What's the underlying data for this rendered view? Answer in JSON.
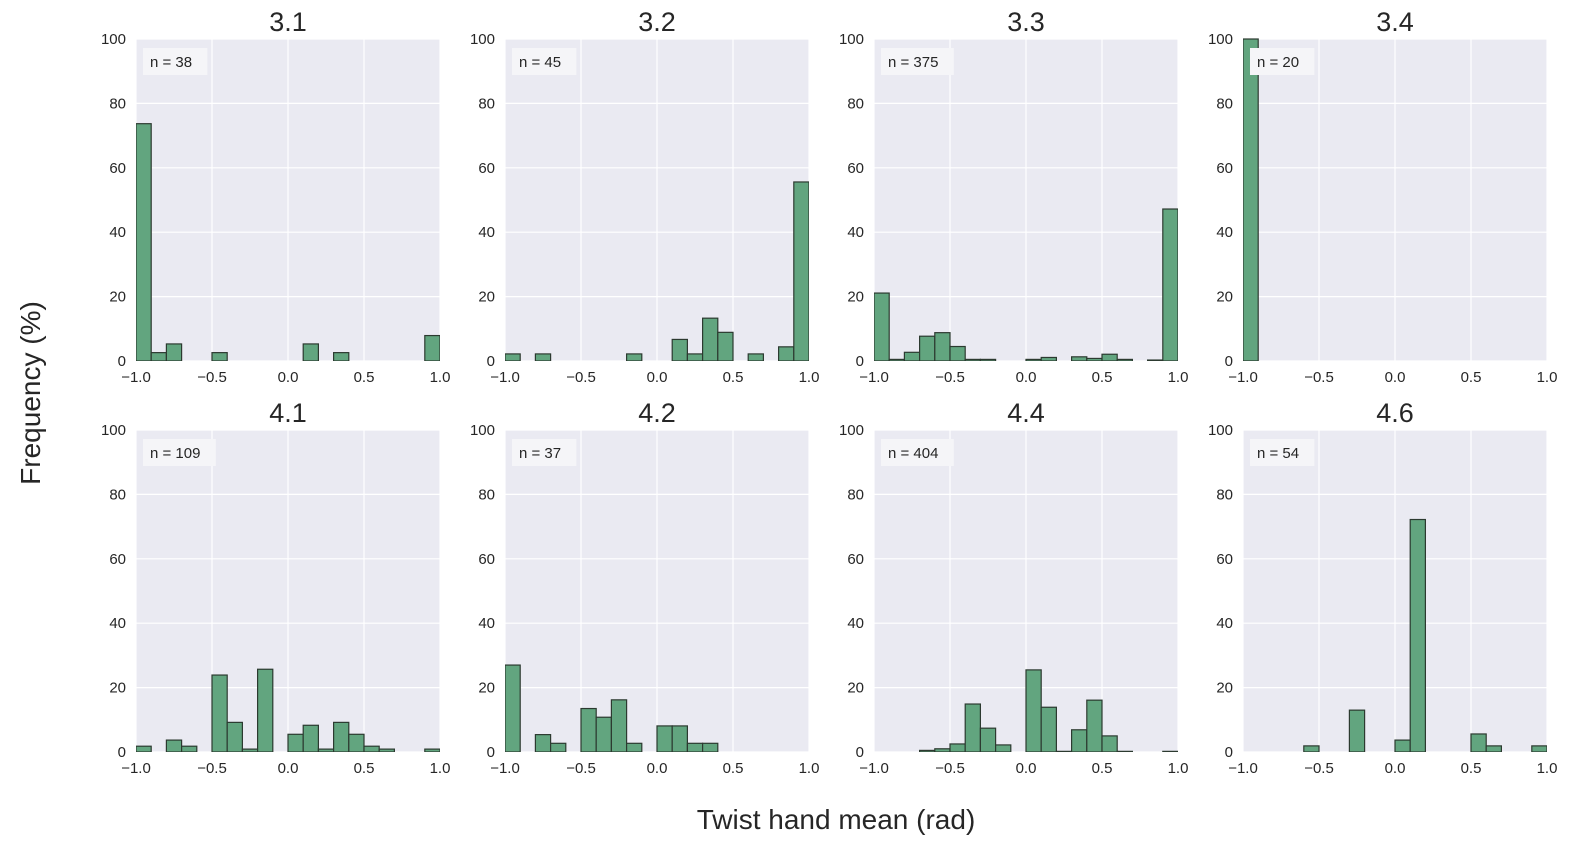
{
  "figure": {
    "ylabel": "Frequency (%)",
    "xlabel": "Twist hand mean (rad)",
    "bar_color": "#62a57f",
    "bar_edge_color": "#2c3a30",
    "panel_bg": "#eaeaf2",
    "grid_color": "#ffffff",
    "x_ticks": [
      "−1.0",
      "−0.5",
      "0.0",
      "0.5",
      "1.0"
    ],
    "y_ticks": [
      "0",
      "20",
      "40",
      "60",
      "80",
      "100"
    ]
  },
  "chart_data": [
    {
      "type": "bar",
      "title": "3.1",
      "annotation": "n = 38",
      "xlim": [
        -1,
        1
      ],
      "ylim": [
        0,
        100
      ],
      "bin_width": 0.1,
      "bins": [
        {
          "x": -1.0,
          "y": 73.7
        },
        {
          "x": -0.9,
          "y": 2.6
        },
        {
          "x": -0.8,
          "y": 5.3
        },
        {
          "x": -0.5,
          "y": 2.6
        },
        {
          "x": 0.1,
          "y": 5.3
        },
        {
          "x": 0.3,
          "y": 2.6
        },
        {
          "x": 0.9,
          "y": 7.9
        }
      ]
    },
    {
      "type": "bar",
      "title": "3.2",
      "annotation": "n = 45",
      "xlim": [
        -1,
        1
      ],
      "ylim": [
        0,
        100
      ],
      "bin_width": 0.1,
      "bins": [
        {
          "x": -1.0,
          "y": 2.2
        },
        {
          "x": -0.8,
          "y": 2.2
        },
        {
          "x": -0.2,
          "y": 2.2
        },
        {
          "x": 0.1,
          "y": 6.7
        },
        {
          "x": 0.2,
          "y": 2.2
        },
        {
          "x": 0.3,
          "y": 13.3
        },
        {
          "x": 0.4,
          "y": 8.9
        },
        {
          "x": 0.6,
          "y": 2.2
        },
        {
          "x": 0.8,
          "y": 4.4
        },
        {
          "x": 0.9,
          "y": 55.6
        }
      ]
    },
    {
      "type": "bar",
      "title": "3.3",
      "annotation": "n = 375",
      "xlim": [
        -1,
        1
      ],
      "ylim": [
        0,
        100
      ],
      "bin_width": 0.1,
      "bins": [
        {
          "x": -1.0,
          "y": 21.1
        },
        {
          "x": -0.9,
          "y": 0.5
        },
        {
          "x": -0.8,
          "y": 2.7
        },
        {
          "x": -0.7,
          "y": 7.7
        },
        {
          "x": -0.6,
          "y": 8.8
        },
        {
          "x": -0.5,
          "y": 4.5
        },
        {
          "x": -0.4,
          "y": 0.5
        },
        {
          "x": -0.3,
          "y": 0.5
        },
        {
          "x": 0.0,
          "y": 0.5
        },
        {
          "x": 0.1,
          "y": 1.1
        },
        {
          "x": 0.3,
          "y": 1.3
        },
        {
          "x": 0.4,
          "y": 0.8
        },
        {
          "x": 0.5,
          "y": 2.1
        },
        {
          "x": 0.6,
          "y": 0.5
        },
        {
          "x": 0.8,
          "y": 0.3
        },
        {
          "x": 0.9,
          "y": 47.2
        }
      ]
    },
    {
      "type": "bar",
      "title": "3.4",
      "annotation": "n = 20",
      "xlim": [
        -1,
        1
      ],
      "ylim": [
        0,
        100
      ],
      "bin_width": 0.1,
      "bins": [
        {
          "x": -1.0,
          "y": 100.0
        }
      ]
    },
    {
      "type": "bar",
      "title": "4.1",
      "annotation": "n = 109",
      "xlim": [
        -1,
        1
      ],
      "ylim": [
        0,
        100
      ],
      "bin_width": 0.1,
      "bins": [
        {
          "x": -1.0,
          "y": 1.8
        },
        {
          "x": -0.8,
          "y": 3.7
        },
        {
          "x": -0.7,
          "y": 1.8
        },
        {
          "x": -0.5,
          "y": 23.9
        },
        {
          "x": -0.4,
          "y": 9.2
        },
        {
          "x": -0.3,
          "y": 0.9
        },
        {
          "x": -0.2,
          "y": 25.7
        },
        {
          "x": 0.0,
          "y": 5.5
        },
        {
          "x": 0.1,
          "y": 8.3
        },
        {
          "x": 0.2,
          "y": 0.9
        },
        {
          "x": 0.3,
          "y": 9.2
        },
        {
          "x": 0.4,
          "y": 5.5
        },
        {
          "x": 0.5,
          "y": 1.8
        },
        {
          "x": 0.6,
          "y": 0.9
        },
        {
          "x": 0.9,
          "y": 0.9
        }
      ]
    },
    {
      "type": "bar",
      "title": "4.2",
      "annotation": "n = 37",
      "xlim": [
        -1,
        1
      ],
      "ylim": [
        0,
        100
      ],
      "bin_width": 0.1,
      "bins": [
        {
          "x": -1.0,
          "y": 27.0
        },
        {
          "x": -0.8,
          "y": 5.4
        },
        {
          "x": -0.7,
          "y": 2.7
        },
        {
          "x": -0.5,
          "y": 13.5
        },
        {
          "x": -0.4,
          "y": 10.8
        },
        {
          "x": -0.3,
          "y": 16.2
        },
        {
          "x": -0.2,
          "y": 2.7
        },
        {
          "x": 0.0,
          "y": 8.1
        },
        {
          "x": 0.1,
          "y": 8.1
        },
        {
          "x": 0.2,
          "y": 2.7
        },
        {
          "x": 0.3,
          "y": 2.7
        }
      ]
    },
    {
      "type": "bar",
      "title": "4.4",
      "annotation": "n = 404",
      "xlim": [
        -1,
        1
      ],
      "ylim": [
        0,
        100
      ],
      "bin_width": 0.1,
      "bins": [
        {
          "x": -0.7,
          "y": 0.5
        },
        {
          "x": -0.6,
          "y": 1.0
        },
        {
          "x": -0.5,
          "y": 2.5
        },
        {
          "x": -0.4,
          "y": 14.9
        },
        {
          "x": -0.3,
          "y": 7.4
        },
        {
          "x": -0.2,
          "y": 2.2
        },
        {
          "x": 0.0,
          "y": 25.5
        },
        {
          "x": 0.1,
          "y": 13.9
        },
        {
          "x": 0.2,
          "y": 0.2
        },
        {
          "x": 0.3,
          "y": 6.9
        },
        {
          "x": 0.4,
          "y": 16.1
        },
        {
          "x": 0.5,
          "y": 5.0
        },
        {
          "x": 0.6,
          "y": 0.2
        },
        {
          "x": 0.9,
          "y": 0.2
        }
      ]
    },
    {
      "type": "bar",
      "title": "4.6",
      "annotation": "n = 54",
      "xlim": [
        -1,
        1
      ],
      "ylim": [
        0,
        100
      ],
      "bin_width": 0.1,
      "bins": [
        {
          "x": -0.6,
          "y": 1.9
        },
        {
          "x": -0.3,
          "y": 13.0
        },
        {
          "x": 0.0,
          "y": 3.7
        },
        {
          "x": 0.1,
          "y": 72.2
        },
        {
          "x": 0.5,
          "y": 5.6
        },
        {
          "x": 0.6,
          "y": 1.9
        },
        {
          "x": 0.9,
          "y": 1.9
        }
      ]
    }
  ]
}
